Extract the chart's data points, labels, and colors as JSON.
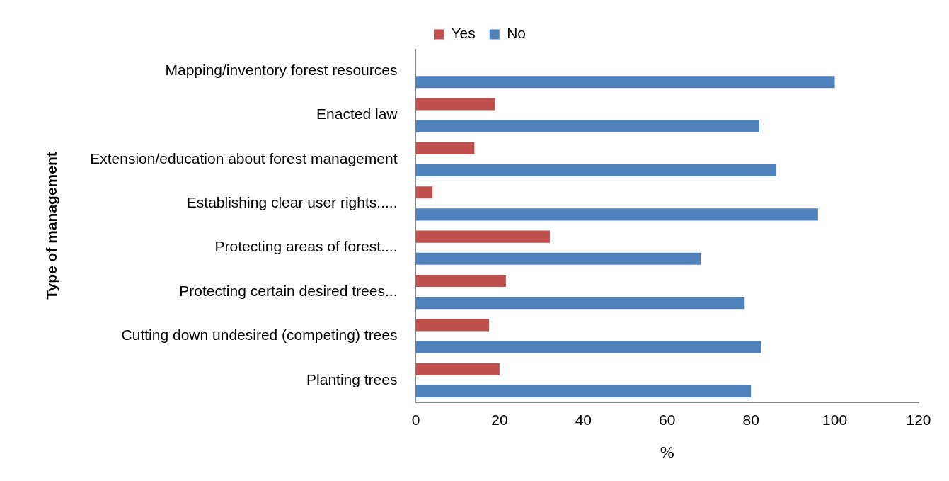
{
  "chart_data": {
    "type": "bar",
    "orientation": "horizontal",
    "ylabel": "Type of management",
    "xlabel": "%",
    "categories": [
      "Mapping/inventory forest resources",
      "Enacted law",
      "Extension/education about forest management",
      "Establishing clear user rights.....",
      "Protecting areas of forest....",
      "Protecting certain desired trees...",
      "Cutting down undesired (competing) trees",
      "Planting trees"
    ],
    "series": [
      {
        "name": "Yes",
        "color": "#c0504d",
        "values": [
          0,
          19,
          14,
          4,
          32,
          21.5,
          17.5,
          20
        ]
      },
      {
        "name": "No",
        "color": "#4f81bd",
        "values": [
          100,
          82,
          86,
          96,
          68,
          78.5,
          82.5,
          80
        ]
      }
    ],
    "xlim": [
      0,
      120
    ],
    "xticks": [
      0,
      20,
      40,
      60,
      80,
      100,
      120
    ],
    "grid": false,
    "legend": "top"
  }
}
